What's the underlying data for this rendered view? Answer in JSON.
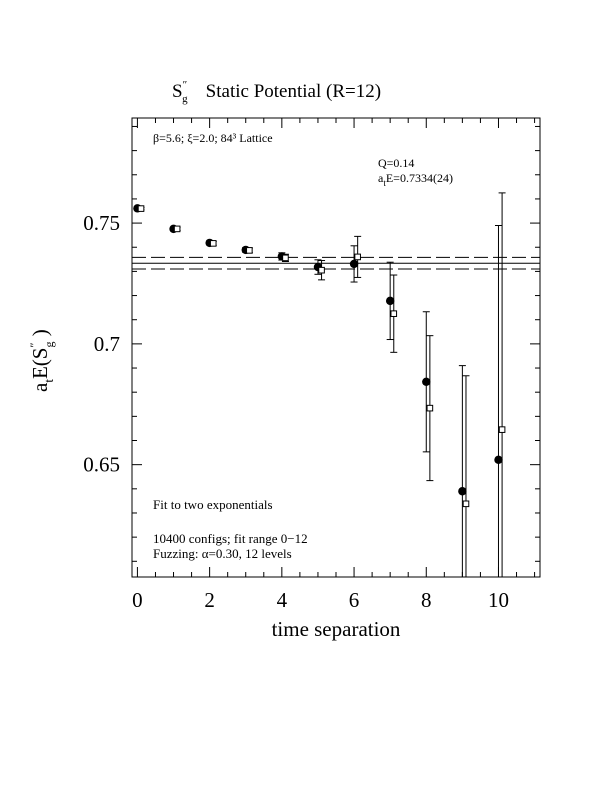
{
  "chart_data": {
    "type": "scatter",
    "title": {
      "symbol_base": "S",
      "symbol_sup": "″",
      "symbol_sub": "g",
      "text": "Static Potential (R=12)"
    },
    "xlabel": "time separation",
    "ylabel": {
      "prefix": "a",
      "prefix_sub": "t",
      "body": "E(S",
      "sup": "″",
      "sub": "g",
      "suffix": " )"
    },
    "xlim": [
      -0.15,
      11.15
    ],
    "ylim": [
      0.6035,
      0.7935
    ],
    "x_ticks": [
      0,
      2,
      4,
      6,
      8,
      10
    ],
    "x_tick_labels": [
      "0",
      "2",
      "4",
      "6",
      "8",
      "10"
    ],
    "y_ticks": [
      0.65,
      0.7,
      0.75
    ],
    "y_tick_labels": [
      "0.65",
      "0.7",
      "0.75"
    ],
    "grid": false,
    "annotations": {
      "lattice": "β=5.6; ξ=2.0; 84³ Lattice",
      "q": "Q=0.14",
      "fit_prefix": "a",
      "fit_sub": "t",
      "fit_value": "E=0.7334(24)",
      "fit_type": "Fit to two exponentials",
      "configs": "10400 configs; fit range 0−12",
      "fuzzing": "Fuzzing: α=0.30, 12 levels"
    },
    "fit": {
      "value": 0.7334,
      "error": 0.0024
    },
    "series": [
      {
        "marker": "filled-circle",
        "points": [
          {
            "x": 0,
            "y": 0.7561,
            "err": 0.0005
          },
          {
            "x": 1,
            "y": 0.7476,
            "err": 0.0007
          },
          {
            "x": 2,
            "y": 0.7418,
            "err": 0.0008
          },
          {
            "x": 3,
            "y": 0.7389,
            "err": 0.001
          },
          {
            "x": 4,
            "y": 0.7362,
            "err": 0.0015
          },
          {
            "x": 5,
            "y": 0.7318,
            "err": 0.003
          },
          {
            "x": 6,
            "y": 0.7331,
            "err": 0.0075
          },
          {
            "x": 7,
            "y": 0.7178,
            "err": 0.016
          },
          {
            "x": 8,
            "y": 0.6843,
            "err": 0.029
          },
          {
            "x": 9,
            "y": 0.639,
            "err": 0.052
          },
          {
            "x": 10,
            "y": 0.652,
            "err": 0.097
          }
        ]
      },
      {
        "marker": "open-square",
        "points": [
          {
            "x": 0.1,
            "y": 0.756,
            "err": 0.0005
          },
          {
            "x": 1.1,
            "y": 0.7476,
            "err": 0.0007
          },
          {
            "x": 2.1,
            "y": 0.7416,
            "err": 0.0008
          },
          {
            "x": 3.1,
            "y": 0.7387,
            "err": 0.001
          },
          {
            "x": 4.1,
            "y": 0.7356,
            "err": 0.0015
          },
          {
            "x": 5.1,
            "y": 0.7305,
            "err": 0.004
          },
          {
            "x": 6.1,
            "y": 0.736,
            "err": 0.0085
          },
          {
            "x": 7.1,
            "y": 0.7125,
            "err": 0.016
          },
          {
            "x": 8.1,
            "y": 0.6734,
            "err": 0.03
          },
          {
            "x": 9.1,
            "y": 0.6338,
            "err": 0.053
          },
          {
            "x": 10.1,
            "y": 0.6645,
            "err": 0.098
          }
        ]
      }
    ]
  }
}
